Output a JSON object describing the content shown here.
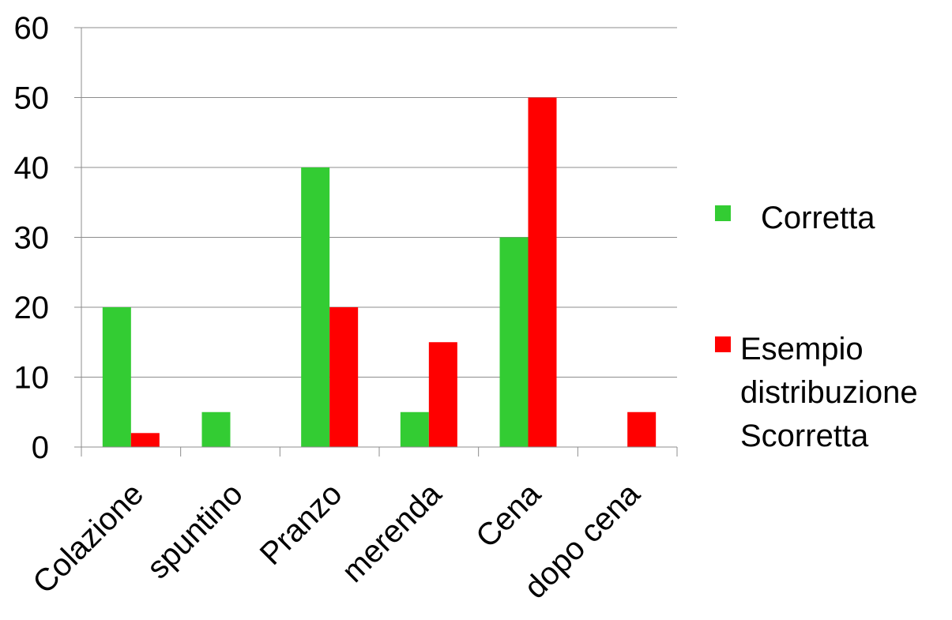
{
  "chart_data": {
    "type": "bar",
    "categories": [
      "Colazione",
      "spuntino",
      "Pranzo",
      "merenda",
      "Cena",
      "dopo cena"
    ],
    "series": [
      {
        "name": "Corretta",
        "values": [
          20,
          5,
          40,
          5,
          30,
          0
        ],
        "color": "#33CC33"
      },
      {
        "name": "Esempio distribuzione Scorretta",
        "values": [
          2,
          0,
          20,
          15,
          50,
          5
        ],
        "color": "#FF0000"
      }
    ],
    "legend_lines": [
      [
        "Corretta"
      ],
      [
        "Esempio",
        "distribuzione",
        "Scorretta"
      ]
    ],
    "ylim": [
      0,
      60
    ],
    "yticks": [
      0,
      10,
      20,
      30,
      40,
      50,
      60
    ],
    "grid": true,
    "legend_position": "right",
    "title": "",
    "xlabel": "",
    "ylabel": ""
  }
}
